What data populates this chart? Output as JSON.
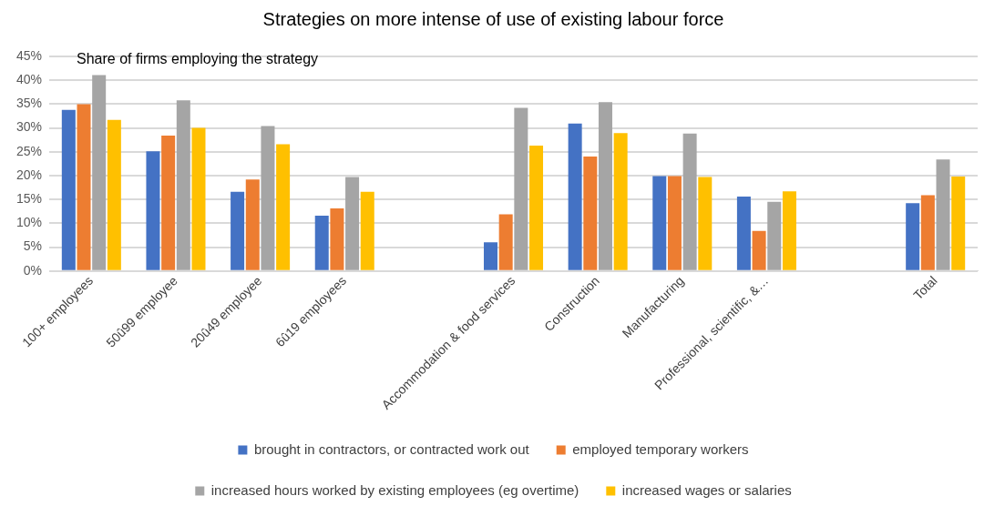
{
  "chart_data": {
    "type": "bar",
    "title": "Strategies on more intense of use of existing labour force",
    "annotations": [
      "Share of firms employing the strategy"
    ],
    "categories": [
      "100+ employees",
      "50û99 employee",
      "20û49 employee",
      "6û19 employees",
      null,
      "Accommodation & food services",
      "Construction",
      "Manufacturing",
      "Professional, scientific, &…",
      null,
      "Total"
    ],
    "series": [
      {
        "name": "brought in contractors, or contracted work out",
        "color": "#4472c4",
        "values": [
          33.8,
          25.1,
          16.6,
          11.6,
          null,
          6.0,
          30.9,
          19.9,
          15.6,
          null,
          14.2
        ]
      },
      {
        "name": "employed temporary workers",
        "color": "#ed7d31",
        "values": [
          35.0,
          28.4,
          19.2,
          13.1,
          null,
          11.9,
          24.0,
          19.9,
          8.4,
          null,
          15.9
        ]
      },
      {
        "name": "increased hours worked by existing employees (eg overtime)",
        "color": "#a5a5a5",
        "values": [
          41.1,
          35.8,
          30.4,
          19.7,
          null,
          34.2,
          35.4,
          28.8,
          14.5,
          null,
          23.4
        ]
      },
      {
        "name": "increased wages or salaries",
        "color": "#ffc000",
        "values": [
          31.7,
          30.0,
          26.6,
          16.6,
          null,
          26.3,
          28.9,
          19.7,
          16.7,
          null,
          19.8
        ]
      }
    ],
    "ylim": [
      0,
      45
    ],
    "yticks": [
      {
        "value": 0,
        "label": "0%"
      },
      {
        "value": 5,
        "label": "5%"
      },
      {
        "value": 10,
        "label": "10%"
      },
      {
        "value": 15,
        "label": "15%"
      },
      {
        "value": 20,
        "label": "20%"
      },
      {
        "value": 25,
        "label": "25%"
      },
      {
        "value": 30,
        "label": "30%"
      },
      {
        "value": 35,
        "label": "35%"
      },
      {
        "value": 40,
        "label": "40%"
      },
      {
        "value": 45,
        "label": "45%"
      }
    ],
    "grid": "y",
    "legend": "bottom"
  }
}
